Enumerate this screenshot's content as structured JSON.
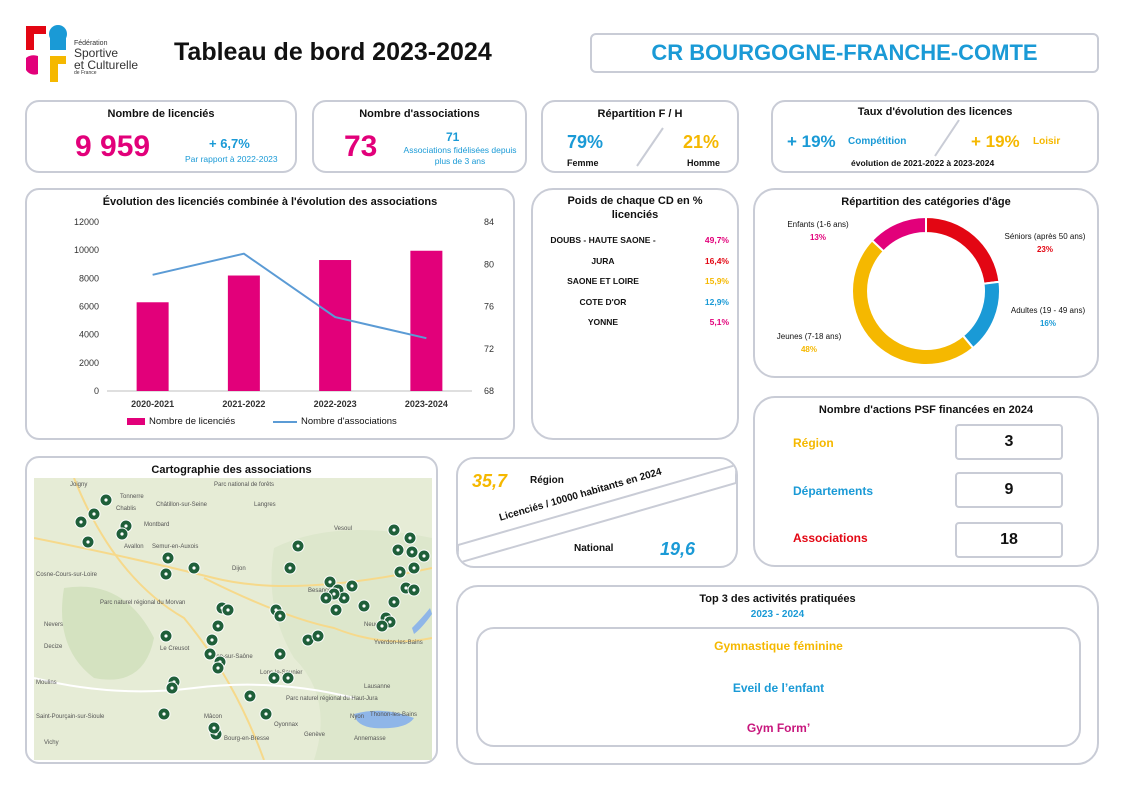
{
  "header": {
    "logo_text": [
      "Fédération",
      "Sportive",
      "et Culturelle",
      "de France"
    ],
    "title": "Tableau de bord 2023-2024",
    "region": "CR BOURGOGNE-FRANCHE-COMTE"
  },
  "kpi_licencies": {
    "title": "Nombre de licenciés",
    "value": "9 959",
    "delta": "+ 6,7%",
    "note": "Par rapport à 2022-2023"
  },
  "kpi_associations": {
    "title": "Nombre d'associations",
    "value": "73",
    "fidelisees_value": "71",
    "fidelisees_note": "Associations fidélisées depuis plus de 3 ans"
  },
  "kpi_fh": {
    "title": "Répartition F / H",
    "femme_pct": "79%",
    "femme_label": "Femme",
    "homme_pct": "21%",
    "homme_label": "Homme"
  },
  "kpi_taux": {
    "title": "Taux d'évolution des licences",
    "comp_pct": "+ 19%",
    "comp_label": "Compétition",
    "loisir_pct": "+ 19%",
    "loisir_label": "Loisir",
    "footer": "évolution de 2021-2022 à 2023-2024"
  },
  "evolution": {
    "title": "Évolution des licenciés combinée à l'évolution des associations",
    "legend_bar": "Nombre de licenciés",
    "legend_line": "Nombre d'associations"
  },
  "chart_data": {
    "type": "bar",
    "categories": [
      "2020-2021",
      "2021-2022",
      "2022-2023",
      "2023-2024"
    ],
    "series": [
      {
        "name": "Nombre de licenciés",
        "type": "bar",
        "axis": "left",
        "color": "#e2007a",
        "values": [
          6300,
          8200,
          9300,
          9959
        ]
      },
      {
        "name": "Nombre d'associations",
        "type": "line",
        "axis": "right",
        "color": "#5b9bd5",
        "values": [
          79,
          81,
          75,
          73
        ]
      }
    ],
    "ylim": [
      0,
      12000
    ],
    "yticks": [
      "0",
      "2000",
      "4000",
      "6000",
      "8000",
      "10000",
      "12000"
    ],
    "y2lim": [
      68,
      84
    ],
    "y2ticks": [
      "68",
      "72",
      "76",
      "80",
      "84"
    ],
    "legend": "bottom"
  },
  "poids_cd": {
    "title": "Poids de chaque CD en % licenciés",
    "rows": [
      {
        "name": "DOUBS - HAUTE SAONE -",
        "pct": "49,7%",
        "color": "#e2007a"
      },
      {
        "name": "JURA",
        "pct": "16,4%",
        "color": "#e30613"
      },
      {
        "name": "SAONE ET LOIRE",
        "pct": "15,9%",
        "color": "#f5b800"
      },
      {
        "name": "COTE D'OR",
        "pct": "12,9%",
        "color": "#1a9ad6"
      },
      {
        "name": "YONNE",
        "pct": "5,1%",
        "color": "#e2007a"
      }
    ]
  },
  "age": {
    "title": "Répartition des catégories d'âge",
    "slices": [
      {
        "label": "Séniors (après 50 ans)",
        "pct": "23%",
        "value": 23,
        "color": "#e30613"
      },
      {
        "label": "Adultes (19 - 49 ans)",
        "pct": "16%",
        "value": 16,
        "color": "#1a9ad6"
      },
      {
        "label": "Jeunes (7-18 ans)",
        "pct": "48%",
        "value": 48,
        "color": "#f5b800"
      },
      {
        "label": "Enfants (1-6 ans)",
        "pct": "13%",
        "value": 13,
        "color": "#e2007a"
      }
    ]
  },
  "psf": {
    "title": "Nombre d'actions PSF financées en 2024",
    "rows": [
      {
        "label": "Région",
        "value": "3",
        "color": "#f5b800"
      },
      {
        "label": "Départements",
        "value": "9",
        "color": "#1a9ad6"
      },
      {
        "label": "Associations",
        "value": "18",
        "color": "#e30613"
      }
    ]
  },
  "map": {
    "title": "Cartographie des associations",
    "places": [
      "Joigny",
      "Tonnerre",
      "Chablis",
      "Châtillon-sur-Seine",
      "Langres",
      "Vesoul",
      "Avallon",
      "Semur-en-Auxois",
      "Dijon",
      "Montbard",
      "Parc naturel régional du Morvan",
      "Nevers",
      "Decize",
      "Le Creusot",
      "Chalon-sur-Saône",
      "Lons-le-Saunier",
      "Besançon",
      "Neuchâtel",
      "Yverdon-les-Bains",
      "Lausanne",
      "Genève",
      "Annemasse",
      "Thonon-les-Bains",
      "Nyon",
      "Moulins",
      "Saint-Pourçain-sur-Sioule",
      "Vichy",
      "Mâcon",
      "Bourg-en-Bresse",
      "Oyonnax",
      "Parc naturel régional du Haut-Jura",
      "Parc national de forêts",
      "Cosne-Cours-sur-Loire"
    ]
  },
  "ratio": {
    "region_value": "35,7",
    "region_label": "Région",
    "diagonal_label": "Licenciés / 10000 habitants en 2024",
    "national_value": "19,6",
    "national_label": "National"
  },
  "top3": {
    "title": "Top 3 des activités pratiquées",
    "season": "2023 - 2024",
    "items": [
      {
        "label": "Gymnastique féminine",
        "color": "#f5b800"
      },
      {
        "label": "Eveil de l’enfant",
        "color": "#1a9ad6"
      },
      {
        "label": "Gym Form’",
        "color": "#c8177d"
      }
    ]
  }
}
